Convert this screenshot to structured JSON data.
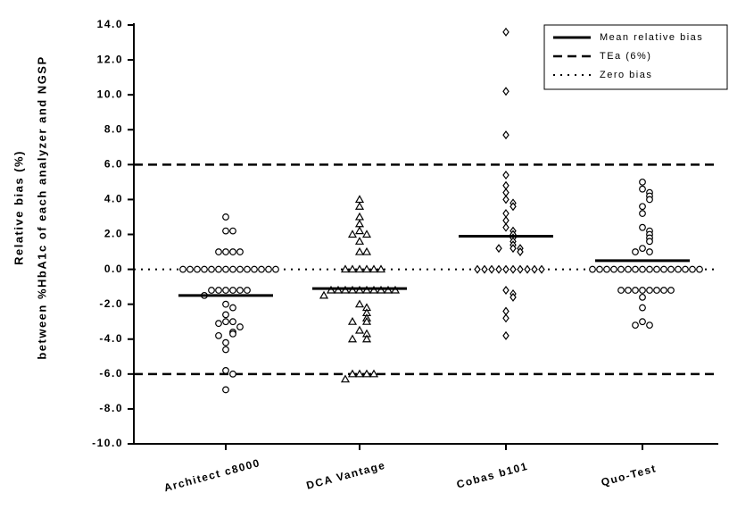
{
  "chart_data": {
    "type": "dotplot",
    "y_label_lines": [
      "Relative bias (%)",
      "between %HbA1c of each analyzer and NGSP"
    ],
    "categories": [
      "Architect c8000",
      "DCA Vantage",
      "Cobas b101",
      "Quo-Test"
    ],
    "groups": [
      {
        "marker": "circle",
        "mean": -1.5,
        "values": [
          3.0,
          2.2,
          2.2,
          1.0,
          1.0,
          1.0,
          1.0,
          0,
          0,
          0,
          0,
          0,
          0,
          0,
          0,
          0,
          0,
          0,
          0,
          0,
          0,
          -1.2,
          -1.2,
          -1.2,
          -1.2,
          -1.2,
          -1.2,
          -1.5,
          -2.0,
          -2.2,
          -2.6,
          -3.0,
          -3.0,
          -3.1,
          -3.3,
          -3.6,
          -3.7,
          -3.8,
          -4.2,
          -4.6,
          -5.8,
          -6.0,
          -6.9
        ]
      },
      {
        "marker": "triangle",
        "mean": -1.1,
        "values": [
          4.0,
          3.6,
          3.0,
          2.6,
          2.2,
          2.0,
          2.0,
          1.6,
          1.0,
          1.0,
          0,
          0,
          0,
          0,
          0,
          0,
          -1.2,
          -1.2,
          -1.2,
          -1.2,
          -1.2,
          -1.2,
          -1.2,
          -1.2,
          -1.2,
          -1.2,
          -1.5,
          -2.0,
          -2.2,
          -2.5,
          -2.8,
          -3.0,
          -3.0,
          -3.5,
          -3.7,
          -4.0,
          -4.0,
          -6.0,
          -6.0,
          -6.0,
          -6.0,
          -6.3
        ]
      },
      {
        "marker": "diamond",
        "mean": 1.9,
        "values": [
          13.6,
          10.2,
          7.7,
          5.4,
          4.8,
          4.4,
          4.0,
          3.8,
          3.6,
          3.2,
          2.8,
          2.4,
          2.2,
          2.0,
          1.8,
          1.6,
          1.4,
          1.2,
          1.2,
          1.2,
          1.0,
          0,
          0,
          0,
          0,
          0,
          0,
          0,
          0,
          0,
          0,
          -1.2,
          -1.4,
          -1.6,
          -2.4,
          -2.8,
          -3.8
        ]
      },
      {
        "marker": "circle",
        "mean": 0.5,
        "values": [
          5.0,
          4.6,
          4.4,
          4.2,
          4.0,
          3.6,
          3.2,
          2.4,
          2.2,
          2.0,
          1.8,
          1.6,
          1.2,
          1.0,
          1.0,
          0,
          0,
          0,
          0,
          0,
          0,
          0,
          0,
          0,
          0,
          0,
          0,
          0,
          0,
          0,
          0,
          -1.2,
          -1.2,
          -1.2,
          -1.2,
          -1.2,
          -1.2,
          -1.2,
          -1.2,
          -1.6,
          -2.2,
          -3.0,
          -3.2,
          -3.2
        ]
      }
    ],
    "mean_legend": "Mean relative bias",
    "reference_lines": [
      {
        "name": "TEa (6%)",
        "style": "dashed",
        "values": [
          6,
          -6
        ]
      },
      {
        "name": "Zero bias",
        "style": "dotted",
        "values": [
          0
        ]
      }
    ],
    "ylim": [
      -10,
      14
    ],
    "yticks": [
      {
        "value": -10,
        "label": "-10.0"
      },
      {
        "value": -8,
        "label": "-8.0"
      },
      {
        "value": -6,
        "label": "-6.0"
      },
      {
        "value": -4,
        "label": "-4.0"
      },
      {
        "value": -2,
        "label": "-2.0"
      },
      {
        "value": 0,
        "label": "0.0"
      },
      {
        "value": 2,
        "label": "2.0"
      },
      {
        "value": 4,
        "label": "4.0"
      },
      {
        "value": 6,
        "label": "6.0"
      },
      {
        "value": 8,
        "label": "8.0"
      },
      {
        "value": 10,
        "label": "10.0"
      },
      {
        "value": 12,
        "label": "12.0"
      },
      {
        "value": 14,
        "label": "14.0"
      }
    ],
    "legend": "top-right"
  }
}
